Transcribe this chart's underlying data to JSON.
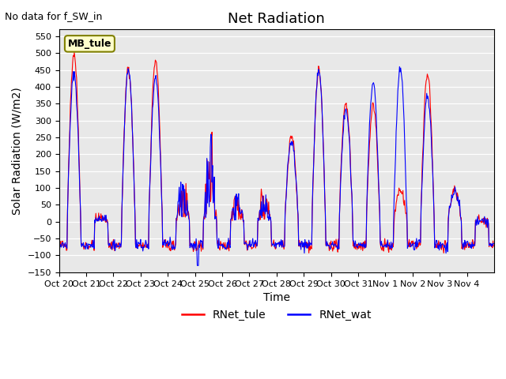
{
  "title": "Net Radiation",
  "xlabel": "Time",
  "ylabel": "Solar Radiation (W/m2)",
  "ylim": [
    -150,
    570
  ],
  "yticks": [
    -150,
    -100,
    -50,
    0,
    50,
    100,
    150,
    200,
    250,
    300,
    350,
    400,
    450,
    500,
    550
  ],
  "xtick_labels": [
    "Oct 20",
    "Oct 21",
    "Oct 22",
    "Oct 23",
    "Oct 24",
    "Oct 25",
    "Oct 26",
    "Oct 27",
    "Oct 28",
    "Oct 29",
    "Oct 30",
    "Oct 31",
    "Nov 1",
    "Nov 2",
    "Nov 3",
    "Nov 4"
  ],
  "annotation_text": "No data for f_SW_in",
  "legend_box_text": "MB_tule",
  "line_red_color": "#ff0000",
  "line_blue_color": "#0000ff",
  "bg_color": "#e8e8e8",
  "legend_label_red": "RNet_tule",
  "legend_label_blue": "RNet_wat",
  "n_points_per_day": 48,
  "n_days": 16
}
